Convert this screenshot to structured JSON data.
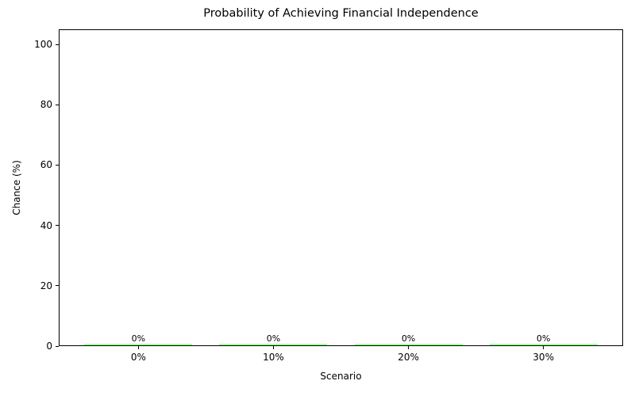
{
  "chart_data": {
    "type": "bar",
    "title": "Probability of Achieving Financial Independence",
    "xlabel": "Scenario",
    "ylabel": "Chance (%)",
    "categories": [
      "0%",
      "10%",
      "20%",
      "30%"
    ],
    "values": [
      0,
      0,
      0,
      0
    ],
    "bar_labels": [
      "0%",
      "0%",
      "0%",
      "0%"
    ],
    "yticks": [
      0,
      20,
      40,
      60,
      80,
      100
    ],
    "ylim": [
      0,
      105
    ],
    "bar_color": "#90EE90",
    "axis_color": "#000000",
    "background_color": "#ffffff",
    "grid": false,
    "legend": "none"
  }
}
